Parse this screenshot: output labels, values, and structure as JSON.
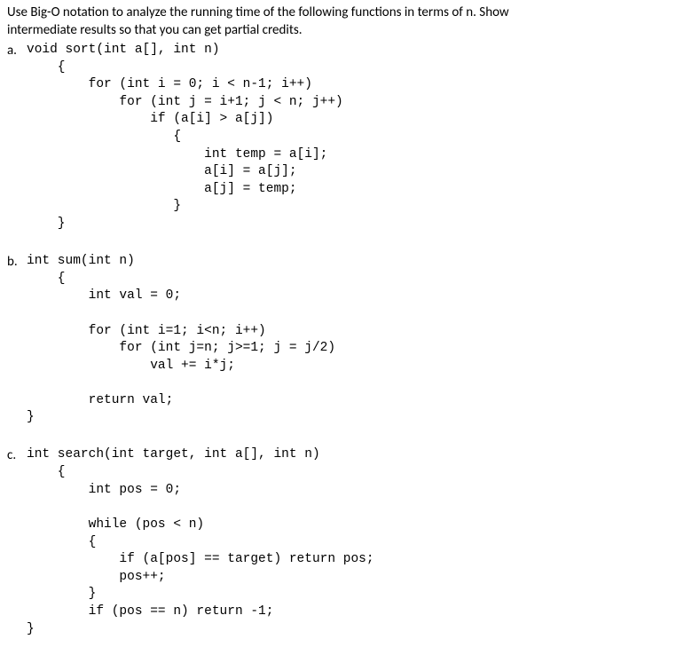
{
  "intro": {
    "line1": "Use Big-O notation to analyze the running time of the following functions in terms of n. Show",
    "line2": "intermediate results so that you can get partial credits."
  },
  "parts": {
    "a": {
      "label": "a.",
      "signature": "void sort(int a[], int n)",
      "body": "    {\n        for (int i = 0; i < n-1; i++)\n            for (int j = i+1; j < n; j++)\n                if (a[i] > a[j])\n                   {\n                       int temp = a[i];\n                       a[i] = a[j];\n                       a[j] = temp;\n                   }\n    }"
    },
    "b": {
      "label": "b.",
      "signature": "int sum(int n)",
      "body": "    {\n        int val = 0;\n\n        for (int i=1; i<n; i++)\n            for (int j=n; j>=1; j = j/2)\n                val += i*j;\n\n        return val;\n}"
    },
    "c": {
      "label": "c.",
      "signature": "int search(int target, int a[], int n)",
      "body": "    {\n        int pos = 0;\n\n        while (pos < n)\n        {\n            if (a[pos] == target) return pos;\n            pos++;\n        }\n        if (pos == n) return -1;\n}"
    }
  }
}
